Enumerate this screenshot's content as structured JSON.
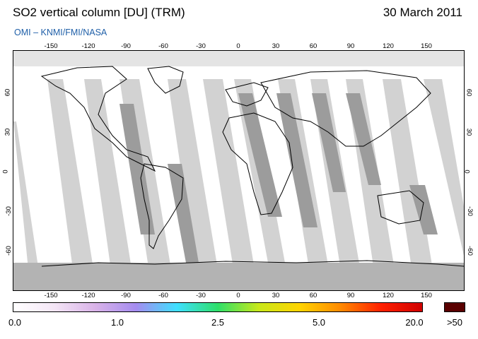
{
  "header": {
    "title": "SO2 vertical column [DU] (TRM)",
    "date": "30 March 2011",
    "credit": "OMI  –  KNMI/FMI/NASA"
  },
  "axes": {
    "top_lon_ticks": [
      "-150",
      "-120",
      "-90",
      "-60",
      "-30",
      "0",
      "30",
      "60",
      "90",
      "120",
      "150"
    ],
    "bottom_lon_ticks": [
      "-150",
      "-120",
      "-90",
      "-60",
      "-30",
      "0",
      "30",
      "60",
      "90",
      "120",
      "150"
    ],
    "lat_ticks": [
      "60",
      "30",
      "0",
      "-30",
      "-60"
    ]
  },
  "colorbar": {
    "labels": [
      "0.0",
      "1.0",
      "2.5",
      "5.0",
      "20.0"
    ],
    "overflow_label": ">50",
    "colors": [
      "#ffffff",
      "#f4e6f6",
      "#d9b3e8",
      "#a58cf0",
      "#3fe0ff",
      "#2ee06a",
      "#c8e81a",
      "#ffd400",
      "#ff8a00",
      "#ff2000",
      "#d00000"
    ],
    "overflow_color": "#5a0000"
  },
  "map": {
    "land_outline_color": "#000000",
    "missing_data_color": "#a8a8a8",
    "swath_gap_color": "#cfcfcf"
  }
}
